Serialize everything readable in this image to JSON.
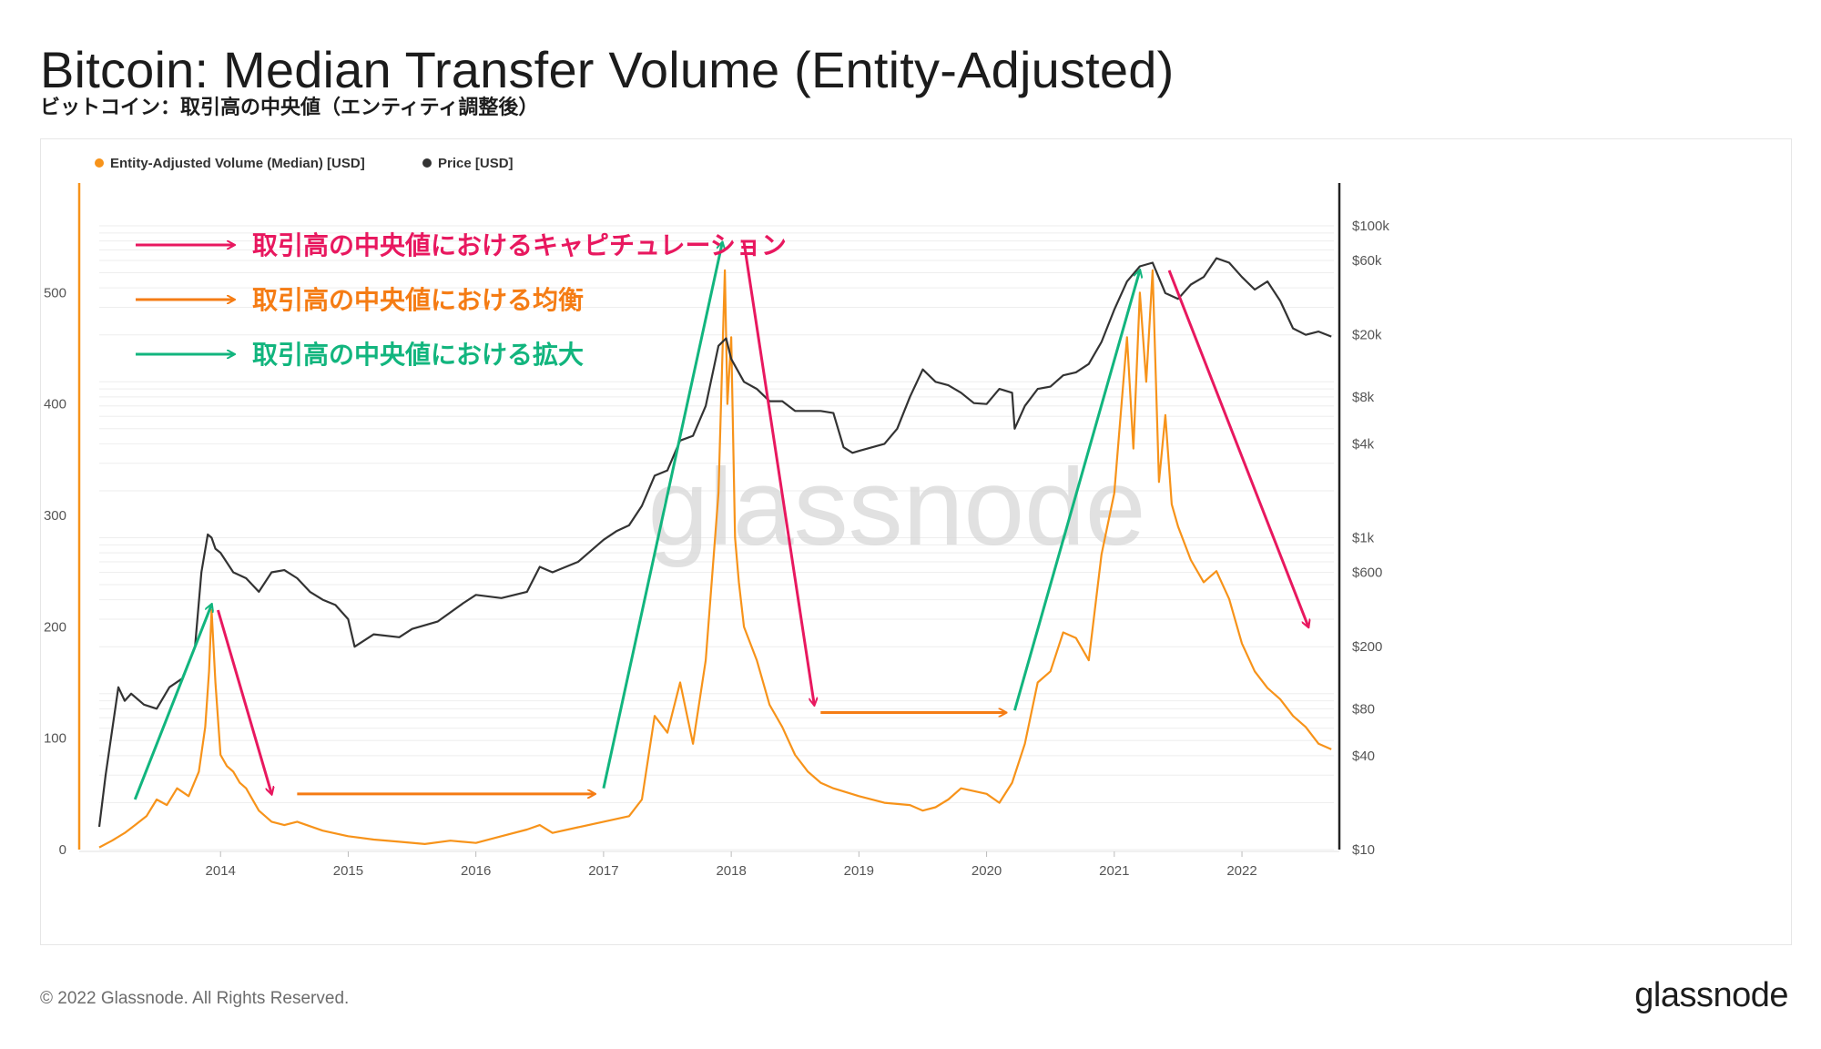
{
  "header": {
    "title": "Bitcoin: Median Transfer Volume (Entity-Adjusted)",
    "subtitle": "ビットコイン：取引高の中央値（エンティティ調整後）"
  },
  "footer": {
    "copyright": "© 2022 Glassnode. All Rights Reserved.",
    "brand": "glassnode"
  },
  "watermark": "glassnode",
  "chart_data": {
    "type": "line",
    "legend_position": "top-left",
    "grid": true,
    "colors": {
      "volume": "#f7931a",
      "price": "#333333",
      "capitulation": "#e8185f",
      "equilibrium": "#f57c14",
      "expansion": "#12b57e"
    },
    "x_ticks": [
      "2014",
      "2015",
      "2016",
      "2017",
      "2018",
      "2019",
      "2020",
      "2021",
      "2022"
    ],
    "xlim": [
      2013.05,
      2022.72
    ],
    "y_left": {
      "ticks": [
        0,
        100,
        200,
        300,
        400,
        500
      ],
      "ylim": [
        0,
        560
      ]
    },
    "y_right": {
      "scale": "log",
      "ticks": [
        "$10",
        "$40",
        "$80",
        "$200",
        "$600",
        "$1k",
        "$4k",
        "$8k",
        "$20k",
        "$60k",
        "$100k"
      ],
      "ylim": [
        10,
        100000
      ]
    },
    "series": [
      {
        "name": "Entity-Adjusted Volume (Median) [USD]",
        "axis": "left",
        "x": [
          2013.05,
          2013.15,
          2013.25,
          2013.33,
          2013.42,
          2013.5,
          2013.58,
          2013.66,
          2013.75,
          2013.83,
          2013.88,
          2013.91,
          2013.93,
          2013.96,
          2014.0,
          2014.05,
          2014.1,
          2014.15,
          2014.2,
          2014.3,
          2014.4,
          2014.5,
          2014.6,
          2014.8,
          2015.0,
          2015.2,
          2015.4,
          2015.6,
          2015.8,
          2016.0,
          2016.2,
          2016.4,
          2016.5,
          2016.6,
          2016.8,
          2017.0,
          2017.2,
          2017.3,
          2017.4,
          2017.5,
          2017.6,
          2017.7,
          2017.8,
          2017.9,
          2017.95,
          2017.97,
          2018.0,
          2018.03,
          2018.06,
          2018.1,
          2018.2,
          2018.3,
          2018.4,
          2018.5,
          2018.6,
          2018.7,
          2018.8,
          2019.0,
          2019.2,
          2019.4,
          2019.5,
          2019.6,
          2019.7,
          2019.8,
          2020.0,
          2020.1,
          2020.2,
          2020.3,
          2020.4,
          2020.5,
          2020.6,
          2020.7,
          2020.8,
          2020.9,
          2021.0,
          2021.05,
          2021.1,
          2021.15,
          2021.2,
          2021.25,
          2021.3,
          2021.35,
          2021.4,
          2021.45,
          2021.5,
          2021.6,
          2021.7,
          2021.8,
          2021.9,
          2022.0,
          2022.1,
          2022.2,
          2022.3,
          2022.4,
          2022.5,
          2022.6,
          2022.7
        ],
        "values": [
          2,
          8,
          15,
          22,
          30,
          45,
          40,
          55,
          48,
          70,
          110,
          160,
          215,
          150,
          85,
          75,
          70,
          60,
          55,
          35,
          25,
          22,
          25,
          17,
          12,
          9,
          7,
          5,
          8,
          6,
          12,
          18,
          22,
          15,
          20,
          25,
          30,
          45,
          120,
          105,
          150,
          95,
          170,
          320,
          520,
          400,
          460,
          280,
          240,
          200,
          170,
          130,
          110,
          85,
          70,
          60,
          55,
          48,
          42,
          40,
          35,
          38,
          45,
          55,
          50,
          42,
          60,
          95,
          150,
          160,
          195,
          190,
          170,
          265,
          320,
          390,
          460,
          360,
          500,
          420,
          520,
          330,
          390,
          310,
          290,
          260,
          240,
          250,
          225,
          185,
          160,
          145,
          135,
          120,
          110,
          95,
          90
        ]
      },
      {
        "name": "Price [USD]",
        "axis": "right",
        "x": [
          2013.05,
          2013.1,
          2013.2,
          2013.25,
          2013.3,
          2013.4,
          2013.5,
          2013.6,
          2013.7,
          2013.8,
          2013.85,
          2013.9,
          2013.93,
          2013.96,
          2014.0,
          2014.1,
          2014.2,
          2014.3,
          2014.4,
          2014.5,
          2014.6,
          2014.7,
          2014.8,
          2014.9,
          2015.0,
          2015.05,
          2015.2,
          2015.4,
          2015.5,
          2015.7,
          2015.9,
          2016.0,
          2016.2,
          2016.4,
          2016.5,
          2016.6,
          2016.8,
          2017.0,
          2017.1,
          2017.2,
          2017.3,
          2017.4,
          2017.5,
          2017.6,
          2017.7,
          2017.8,
          2017.9,
          2017.96,
          2018.0,
          2018.1,
          2018.2,
          2018.3,
          2018.4,
          2018.5,
          2018.6,
          2018.7,
          2018.8,
          2018.88,
          2018.95,
          2019.0,
          2019.2,
          2019.3,
          2019.4,
          2019.5,
          2019.6,
          2019.7,
          2019.8,
          2019.9,
          2020.0,
          2020.1,
          2020.2,
          2020.22,
          2020.3,
          2020.4,
          2020.5,
          2020.6,
          2020.7,
          2020.8,
          2020.9,
          2021.0,
          2021.1,
          2021.2,
          2021.3,
          2021.4,
          2021.5,
          2021.6,
          2021.7,
          2021.8,
          2021.9,
          2022.0,
          2022.1,
          2022.2,
          2022.3,
          2022.4,
          2022.5,
          2022.6,
          2022.7
        ],
        "values": [
          14,
          30,
          110,
          90,
          100,
          85,
          80,
          110,
          125,
          200,
          600,
          1050,
          1000,
          850,
          800,
          600,
          550,
          450,
          600,
          620,
          550,
          450,
          400,
          370,
          300,
          200,
          240,
          230,
          260,
          290,
          380,
          430,
          410,
          450,
          650,
          600,
          700,
          970,
          1100,
          1200,
          1600,
          2500,
          2700,
          4200,
          4500,
          7000,
          17000,
          19000,
          14000,
          10000,
          9000,
          7500,
          7500,
          6500,
          6500,
          6500,
          6300,
          3800,
          3500,
          3600,
          4000,
          5000,
          8000,
          12000,
          10000,
          9500,
          8500,
          7300,
          7200,
          9000,
          8500,
          5000,
          7000,
          9000,
          9300,
          11000,
          11500,
          13000,
          18000,
          29000,
          44000,
          55000,
          58000,
          37000,
          34000,
          42000,
          47000,
          62000,
          58000,
          47000,
          39000,
          44000,
          33000,
          22000,
          20000,
          21000,
          19500
        ]
      }
    ],
    "legend": [
      {
        "label": "Entity-Adjusted Volume (Median) [USD]",
        "color": "#f7931a"
      },
      {
        "label": "Price [USD]",
        "color": "#333333"
      }
    ],
    "annotations": [
      {
        "label": "取引高の中央値におけるキャピチュレーション",
        "color": "#e8185f"
      },
      {
        "label": "取引高の中央値における均衡",
        "color": "#f57c14"
      },
      {
        "label": "取引高の中央値における拡大",
        "color": "#12b57e"
      }
    ],
    "arrows": [
      {
        "kind": "expansion",
        "from": [
          2013.33,
          45
        ],
        "to": [
          2013.93,
          220
        ]
      },
      {
        "kind": "capitulation",
        "from": [
          2013.98,
          215
        ],
        "to": [
          2014.4,
          50
        ]
      },
      {
        "kind": "equilibrium",
        "from": [
          2014.6,
          50
        ],
        "to": [
          2016.93,
          50
        ]
      },
      {
        "kind": "expansion",
        "from": [
          2017.0,
          55
        ],
        "to": [
          2017.93,
          545
        ]
      },
      {
        "kind": "capitulation",
        "from": [
          2018.1,
          545
        ],
        "to": [
          2018.65,
          130
        ]
      },
      {
        "kind": "equilibrium",
        "from": [
          2018.7,
          123
        ],
        "to": [
          2020.15,
          123
        ]
      },
      {
        "kind": "expansion",
        "from": [
          2020.22,
          125
        ],
        "to": [
          2021.2,
          520
        ]
      },
      {
        "kind": "capitulation",
        "from": [
          2021.43,
          520
        ],
        "to": [
          2022.52,
          200
        ]
      }
    ]
  }
}
